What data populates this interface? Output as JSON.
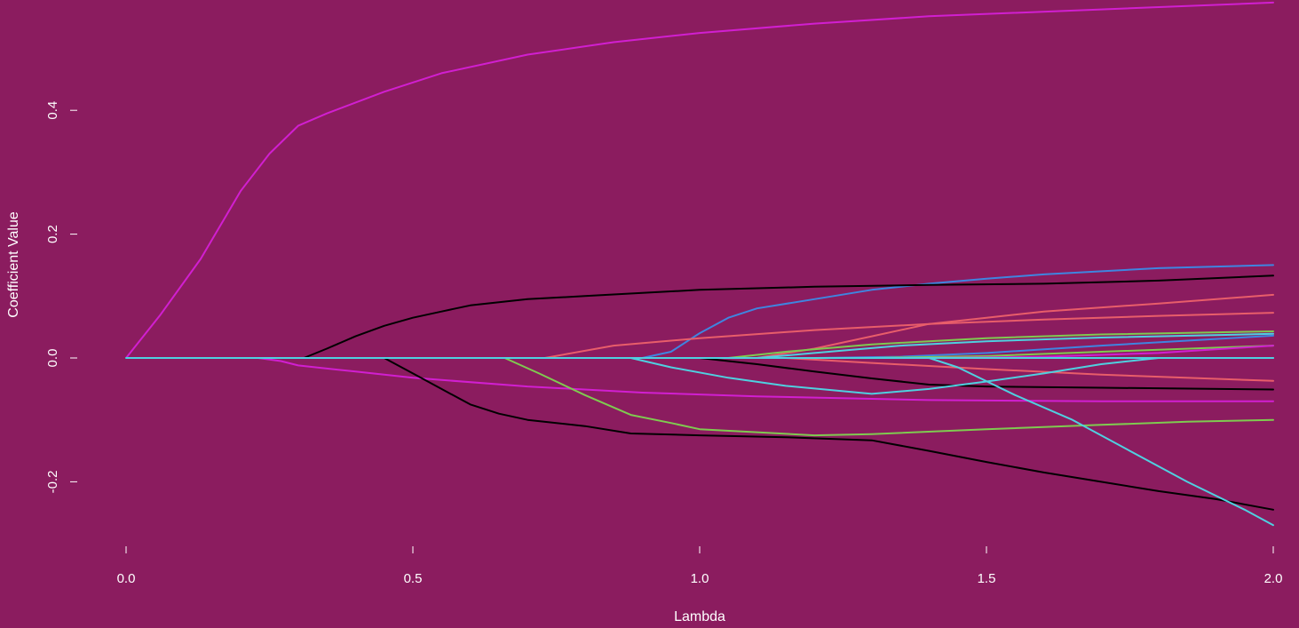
{
  "chart_data": {
    "type": "line",
    "title": "",
    "xlabel": "Lambda",
    "ylabel": "Coefficient Value",
    "xlim": [
      0,
      2
    ],
    "ylim": [
      -0.3,
      0.575
    ],
    "xticks": [
      0,
      0.5,
      1,
      1.5,
      2
    ],
    "xtick_labels": [
      "0.0",
      "0.5",
      "1.0",
      "1.5",
      "2.0"
    ],
    "yticks": [
      -0.2,
      0,
      0.2,
      0.4
    ],
    "ytick_labels": [
      "-0.2",
      "0.0",
      "0.2",
      "0.4"
    ],
    "grid": false,
    "background": "#8B1C5F",
    "series": [
      {
        "color": "#D11FD0",
        "points": [
          [
            0,
            0
          ],
          [
            0.06,
            0.07
          ],
          [
            0.13,
            0.16
          ],
          [
            0.2,
            0.27
          ],
          [
            0.25,
            0.33
          ],
          [
            0.3,
            0.375
          ],
          [
            0.35,
            0.395
          ],
          [
            0.45,
            0.43
          ],
          [
            0.55,
            0.46
          ],
          [
            0.7,
            0.49
          ],
          [
            0.85,
            0.51
          ],
          [
            1.0,
            0.525
          ],
          [
            1.2,
            0.54
          ],
          [
            1.4,
            0.552
          ],
          [
            1.7,
            0.563
          ],
          [
            2.0,
            0.574
          ]
        ]
      },
      {
        "color": "#3F85E0",
        "points": [
          [
            0,
            0
          ],
          [
            0.9,
            0
          ],
          [
            0.95,
            0.01
          ],
          [
            1.0,
            0.04
          ],
          [
            1.05,
            0.065
          ],
          [
            1.1,
            0.08
          ],
          [
            1.2,
            0.095
          ],
          [
            1.3,
            0.11
          ],
          [
            1.4,
            0.12
          ],
          [
            1.5,
            0.128
          ],
          [
            1.6,
            0.135
          ],
          [
            1.8,
            0.145
          ],
          [
            2.0,
            0.15
          ]
        ]
      },
      {
        "color": "#000000",
        "points": [
          [
            0,
            0
          ],
          [
            0.31,
            0
          ],
          [
            0.35,
            0.015
          ],
          [
            0.4,
            0.035
          ],
          [
            0.45,
            0.052
          ],
          [
            0.5,
            0.065
          ],
          [
            0.55,
            0.075
          ],
          [
            0.6,
            0.085
          ],
          [
            0.7,
            0.095
          ],
          [
            0.8,
            0.1
          ],
          [
            0.9,
            0.105
          ],
          [
            1.0,
            0.11
          ],
          [
            1.2,
            0.115
          ],
          [
            1.4,
            0.118
          ],
          [
            1.6,
            0.12
          ],
          [
            1.8,
            0.125
          ],
          [
            2.0,
            0.133
          ]
        ]
      },
      {
        "color": "#E85D6A",
        "points": [
          [
            0,
            0
          ],
          [
            1.1,
            0
          ],
          [
            1.2,
            0.015
          ],
          [
            1.3,
            0.035
          ],
          [
            1.4,
            0.055
          ],
          [
            1.5,
            0.065
          ],
          [
            1.6,
            0.075
          ],
          [
            1.8,
            0.088
          ],
          [
            2.0,
            0.102
          ]
        ]
      },
      {
        "color": "#E85D6A",
        "points": [
          [
            0,
            0
          ],
          [
            0.73,
            0
          ],
          [
            0.85,
            0.02
          ],
          [
            1.0,
            0.032
          ],
          [
            1.2,
            0.045
          ],
          [
            1.4,
            0.055
          ],
          [
            1.6,
            0.062
          ],
          [
            1.8,
            0.068
          ],
          [
            2.0,
            0.073
          ]
        ]
      },
      {
        "color": "#7FCA50",
        "points": [
          [
            0,
            0
          ],
          [
            1.05,
            0
          ],
          [
            1.15,
            0.01
          ],
          [
            1.3,
            0.022
          ],
          [
            1.5,
            0.032
          ],
          [
            1.7,
            0.038
          ],
          [
            2.0,
            0.043
          ]
        ]
      },
      {
        "color": "#4FD0E0",
        "points": [
          [
            0,
            0
          ],
          [
            1.1,
            0
          ],
          [
            1.2,
            0.008
          ],
          [
            1.35,
            0.02
          ],
          [
            1.5,
            0.027
          ],
          [
            1.7,
            0.033
          ],
          [
            2.0,
            0.039
          ]
        ]
      },
      {
        "color": "#3F85E0",
        "points": [
          [
            0,
            0
          ],
          [
            1.2,
            0
          ],
          [
            1.35,
            0.002
          ],
          [
            1.5,
            0.008
          ],
          [
            1.7,
            0.02
          ],
          [
            2.0,
            0.036
          ]
        ]
      },
      {
        "color": "#7FCA50",
        "points": [
          [
            0,
            0
          ],
          [
            1.3,
            0
          ],
          [
            1.5,
            0.003
          ],
          [
            1.7,
            0.01
          ],
          [
            2.0,
            0.02
          ]
        ]
      },
      {
        "color": "#D11FD0",
        "points": [
          [
            0,
            0
          ],
          [
            1.4,
            0
          ],
          [
            1.6,
            0.002
          ],
          [
            1.8,
            0.008
          ],
          [
            2.0,
            0.02
          ]
        ]
      },
      {
        "color": "#4FD0E0",
        "points": [
          [
            0,
            0
          ],
          [
            2.0,
            0
          ]
        ]
      },
      {
        "color": "#E85D6A",
        "points": [
          [
            0,
            0
          ],
          [
            1.15,
            0
          ],
          [
            1.3,
            -0.008
          ],
          [
            1.5,
            -0.018
          ],
          [
            1.7,
            -0.027
          ],
          [
            2.0,
            -0.037
          ]
        ]
      },
      {
        "color": "#000000",
        "points": [
          [
            0,
            0
          ],
          [
            1.0,
            0
          ],
          [
            1.1,
            -0.01
          ],
          [
            1.2,
            -0.022
          ],
          [
            1.3,
            -0.033
          ],
          [
            1.4,
            -0.043
          ],
          [
            1.5,
            -0.046
          ],
          [
            1.7,
            -0.048
          ],
          [
            2.0,
            -0.051
          ]
        ]
      },
      {
        "color": "#D11FD0",
        "points": [
          [
            0,
            0
          ],
          [
            0.23,
            0
          ],
          [
            0.27,
            -0.005
          ],
          [
            0.3,
            -0.012
          ],
          [
            0.4,
            -0.022
          ],
          [
            0.5,
            -0.032
          ],
          [
            0.7,
            -0.046
          ],
          [
            0.9,
            -0.056
          ],
          [
            1.1,
            -0.062
          ],
          [
            1.4,
            -0.068
          ],
          [
            1.7,
            -0.07
          ],
          [
            2.0,
            -0.07
          ]
        ]
      },
      {
        "color": "#4FD0E0",
        "points": [
          [
            0,
            0
          ],
          [
            0.88,
            0
          ],
          [
            0.95,
            -0.015
          ],
          [
            1.05,
            -0.032
          ],
          [
            1.15,
            -0.045
          ],
          [
            1.3,
            -0.058
          ],
          [
            1.4,
            -0.05
          ],
          [
            1.5,
            -0.038
          ],
          [
            1.6,
            -0.025
          ],
          [
            1.7,
            -0.01
          ],
          [
            1.8,
            0
          ],
          [
            2.0,
            0
          ]
        ]
      },
      {
        "color": "#7FCA50",
        "points": [
          [
            0,
            0
          ],
          [
            0.66,
            0
          ],
          [
            0.72,
            -0.025
          ],
          [
            0.8,
            -0.06
          ],
          [
            0.88,
            -0.092
          ],
          [
            0.95,
            -0.105
          ],
          [
            1.0,
            -0.115
          ],
          [
            1.1,
            -0.12
          ],
          [
            1.2,
            -0.125
          ],
          [
            1.3,
            -0.123
          ],
          [
            1.5,
            -0.115
          ],
          [
            1.7,
            -0.108
          ],
          [
            1.85,
            -0.103
          ],
          [
            2.0,
            -0.1
          ]
        ]
      },
      {
        "color": "#000000",
        "points": [
          [
            0,
            0
          ],
          [
            0.45,
            0
          ],
          [
            0.5,
            -0.025
          ],
          [
            0.55,
            -0.05
          ],
          [
            0.6,
            -0.075
          ],
          [
            0.65,
            -0.09
          ],
          [
            0.7,
            -0.1
          ],
          [
            0.8,
            -0.11
          ],
          [
            0.88,
            -0.122
          ],
          [
            1.0,
            -0.125
          ],
          [
            1.15,
            -0.128
          ],
          [
            1.3,
            -0.133
          ],
          [
            1.4,
            -0.15
          ],
          [
            1.5,
            -0.168
          ],
          [
            1.6,
            -0.185
          ],
          [
            1.7,
            -0.2
          ],
          [
            1.8,
            -0.215
          ],
          [
            1.9,
            -0.228
          ],
          [
            2.0,
            -0.245
          ]
        ]
      },
      {
        "color": "#4FD0E0",
        "points": [
          [
            0,
            0
          ],
          [
            1.4,
            0
          ],
          [
            1.45,
            -0.015
          ],
          [
            1.55,
            -0.06
          ],
          [
            1.65,
            -0.1
          ],
          [
            1.75,
            -0.15
          ],
          [
            1.85,
            -0.2
          ],
          [
            1.95,
            -0.245
          ],
          [
            2.0,
            -0.27
          ]
        ]
      }
    ]
  }
}
